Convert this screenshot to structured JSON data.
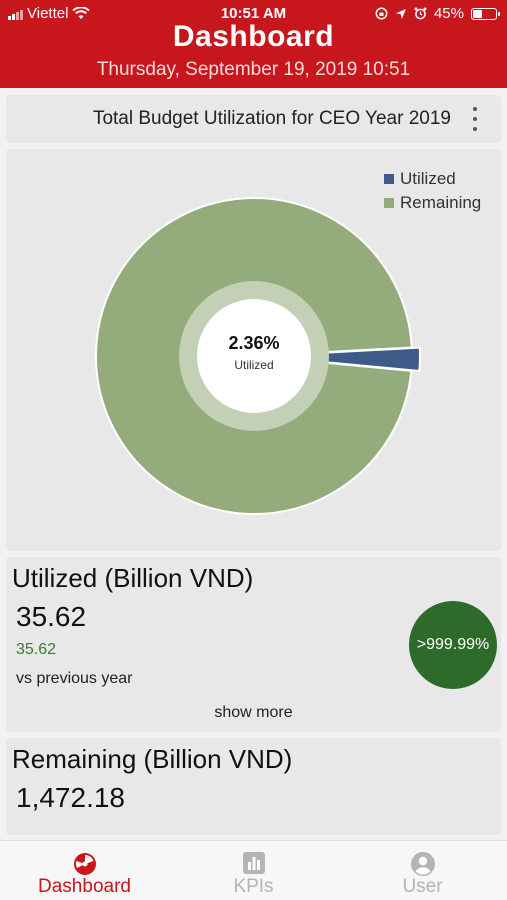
{
  "status_bar": {
    "carrier": "Viettel",
    "time": "10:51 AM",
    "battery": "45%",
    "battery_level": 0.45
  },
  "header": {
    "title": "Dashboard",
    "subtitle": "Thursday, September 19, 2019 10:51"
  },
  "chart_card": {
    "title": "Total Budget Utilization for CEO Year 2019",
    "center_value": "2.36%",
    "center_label": "Utilized"
  },
  "chart_data": {
    "type": "pie",
    "categories": [
      "Utilized",
      "Remaining"
    ],
    "values": [
      2.36,
      97.64
    ],
    "colors": [
      "#3d5a89",
      "#94ab7b"
    ],
    "legend_position": "top-right"
  },
  "utilized_card": {
    "heading": "Utilized (Billion VND)",
    "value": "35.62",
    "previous_value": "35.62",
    "comparison_label": "vs previous year",
    "badge": ">999.99%",
    "show_more": "show more"
  },
  "remaining_card": {
    "heading": "Remaining (Billion VND)",
    "value": "1,472.18"
  },
  "nav": {
    "items": [
      {
        "label": "Dashboard",
        "icon": "dashboard-gauge-icon",
        "active": true
      },
      {
        "label": "KPIs",
        "icon": "bar-chart-icon",
        "active": false
      },
      {
        "label": "User",
        "icon": "user-icon",
        "active": false
      }
    ]
  },
  "colors": {
    "brand": "#c8161d",
    "badge": "#2e6b2b",
    "positive": "#3a7d2c"
  }
}
